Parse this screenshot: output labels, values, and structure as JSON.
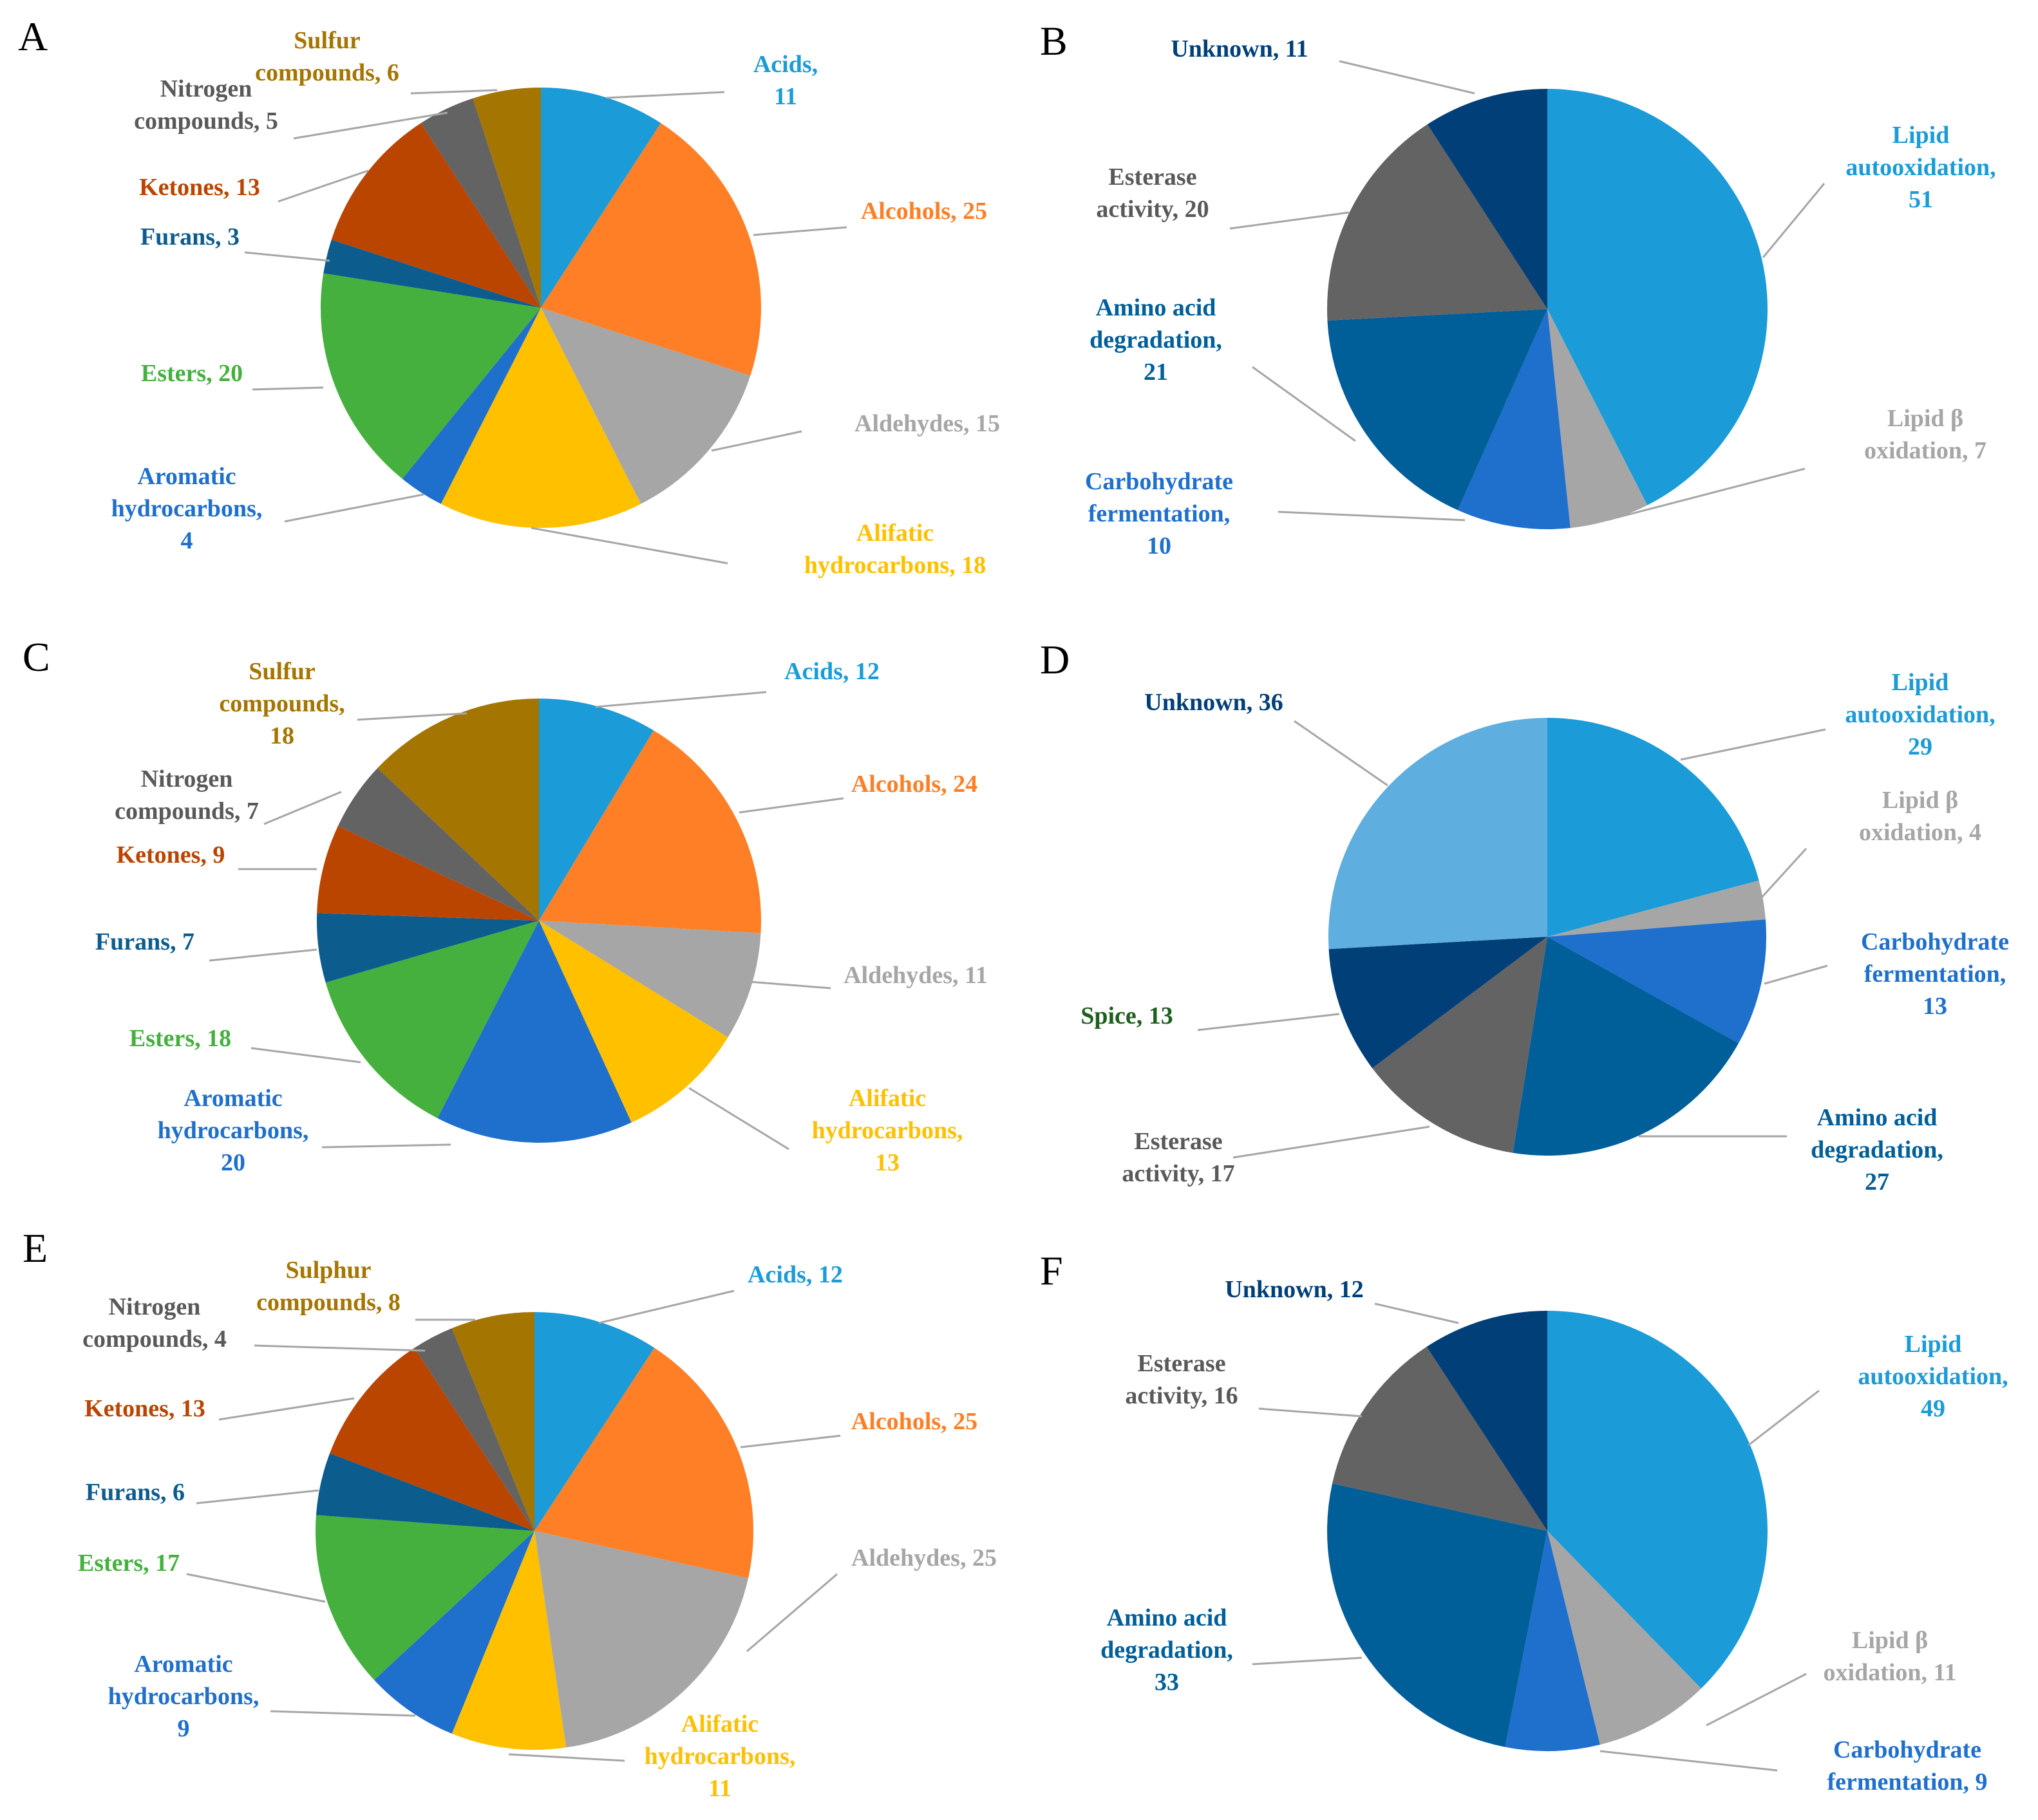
{
  "chart_data": [
    {
      "panel": "A",
      "type": "pie",
      "slices": [
        {
          "label": [
            "Acids,",
            "11"
          ],
          "value": 11,
          "color": "#1b9bd7"
        },
        {
          "label": [
            "Alcohols, 25"
          ],
          "value": 25,
          "color": "#ff7f27"
        },
        {
          "label": [
            "Aldehydes, 15"
          ],
          "value": 15,
          "color": "#a6a6a6"
        },
        {
          "label": [
            "Alifatic",
            "hydrocarbons, 18"
          ],
          "value": 18,
          "color": "#ffc000"
        },
        {
          "label": [
            "Aromatic",
            "hydrocarbons,",
            "4"
          ],
          "value": 4,
          "color": "#1f6fcc"
        },
        {
          "label": [
            "Esters, 20"
          ],
          "value": 20,
          "color": "#46b03e"
        },
        {
          "label": [
            "Furans, 3"
          ],
          "value": 3,
          "color": "#0d5c8e"
        },
        {
          "label": [
            "Ketones, 13"
          ],
          "value": 13,
          "color": "#b94500"
        },
        {
          "label": [
            "Nitrogen",
            "compounds, 5"
          ],
          "value": 5,
          "color": "#636363",
          "text_color": "#595959"
        },
        {
          "label": [
            "Sulfur",
            "compounds, 6"
          ],
          "value": 6,
          "color": "#a47500"
        }
      ]
    },
    {
      "panel": "B",
      "type": "pie",
      "slices": [
        {
          "label": [
            "Lipid",
            "autooxidation,",
            "51"
          ],
          "value": 51,
          "color": "#1b9bd7"
        },
        {
          "label": [
            "Lipid β",
            "oxidation, 7"
          ],
          "value": 7,
          "color": "#a6a6a6"
        },
        {
          "label": [
            "Carbohydrate",
            "fermentation,",
            "10"
          ],
          "value": 10,
          "color": "#1f6fcc"
        },
        {
          "label": [
            "Amino acid",
            "degradation,",
            "21"
          ],
          "value": 21,
          "color": "#005e99"
        },
        {
          "label": [
            "Esterase",
            "activity, 20"
          ],
          "value": 20,
          "color": "#636363",
          "text_color": "#595959"
        },
        {
          "label": [
            "Unknown, 11"
          ],
          "value": 11,
          "color": "#003f78"
        }
      ]
    },
    {
      "panel": "C",
      "type": "pie",
      "slices": [
        {
          "label": [
            "Acids, 12"
          ],
          "value": 12,
          "color": "#1b9bd7"
        },
        {
          "label": [
            "Alcohols, 24"
          ],
          "value": 24,
          "color": "#ff7f27"
        },
        {
          "label": [
            "Aldehydes, 11"
          ],
          "value": 11,
          "color": "#a6a6a6"
        },
        {
          "label": [
            "Alifatic",
            "hydrocarbons,",
            "13"
          ],
          "value": 13,
          "color": "#ffc000"
        },
        {
          "label": [
            "Aromatic",
            "hydrocarbons,",
            "20"
          ],
          "value": 20,
          "color": "#1f6fcc"
        },
        {
          "label": [
            "Esters, 18"
          ],
          "value": 18,
          "color": "#46b03e"
        },
        {
          "label": [
            "Furans, 7"
          ],
          "value": 7,
          "color": "#0d5c8e"
        },
        {
          "label": [
            "Ketones, 9"
          ],
          "value": 9,
          "color": "#b94500"
        },
        {
          "label": [
            "Nitrogen",
            "compounds, 7"
          ],
          "value": 7,
          "color": "#636363",
          "text_color": "#595959"
        },
        {
          "label": [
            "Sulfur",
            "compounds,",
            "18"
          ],
          "value": 18,
          "color": "#a47500"
        }
      ]
    },
    {
      "panel": "D",
      "type": "pie",
      "slices": [
        {
          "label": [
            "Lipid",
            "autooxidation,",
            "29"
          ],
          "value": 29,
          "color": "#1b9bd7"
        },
        {
          "label": [
            "Lipid β",
            "oxidation, 4"
          ],
          "value": 4,
          "color": "#a6a6a6"
        },
        {
          "label": [
            "Carbohydrate",
            "fermentation,",
            "13"
          ],
          "value": 13,
          "color": "#1f6fcc"
        },
        {
          "label": [
            "Amino acid",
            "degradation,",
            "27"
          ],
          "value": 27,
          "color": "#005e99"
        },
        {
          "label": [
            "Esterase",
            "activity, 17"
          ],
          "value": 17,
          "color": "#636363",
          "text_color": "#595959"
        },
        {
          "label": [
            "Spice, 13"
          ],
          "value": 13,
          "color": "#003f78",
          "text_color": "#1f5e1f"
        },
        {
          "label": [
            "Unknown, 36"
          ],
          "value": 36,
          "color": "#5eaee0",
          "text_color": "#003f78"
        }
      ]
    },
    {
      "panel": "E",
      "type": "pie",
      "slices": [
        {
          "label": [
            "Acids, 12"
          ],
          "value": 12,
          "color": "#1b9bd7"
        },
        {
          "label": [
            "Alcohols, 25"
          ],
          "value": 25,
          "color": "#ff7f27"
        },
        {
          "label": [
            "Aldehydes, 25"
          ],
          "value": 25,
          "color": "#a6a6a6"
        },
        {
          "label": [
            "Alifatic",
            "hydrocarbons,",
            "11"
          ],
          "value": 11,
          "color": "#ffc000"
        },
        {
          "label": [
            "Aromatic",
            "hydrocarbons,",
            "9"
          ],
          "value": 9,
          "color": "#1f6fcc"
        },
        {
          "label": [
            "Esters, 17"
          ],
          "value": 17,
          "color": "#46b03e"
        },
        {
          "label": [
            "Furans, 6"
          ],
          "value": 6,
          "color": "#0d5c8e"
        },
        {
          "label": [
            "Ketones, 13"
          ],
          "value": 13,
          "color": "#b94500"
        },
        {
          "label": [
            "Nitrogen",
            "compounds, 4"
          ],
          "value": 4,
          "color": "#636363",
          "text_color": "#595959"
        },
        {
          "label": [
            "Sulphur",
            "compounds, 8"
          ],
          "value": 8,
          "color": "#a47500"
        }
      ]
    },
    {
      "panel": "F",
      "type": "pie",
      "slices": [
        {
          "label": [
            "Lipid",
            "autooxidation,",
            "49"
          ],
          "value": 49,
          "color": "#1b9bd7"
        },
        {
          "label": [
            "Lipid β",
            "oxidation, 11"
          ],
          "value": 11,
          "color": "#a6a6a6"
        },
        {
          "label": [
            "Carbohydrate",
            "fermentation, 9"
          ],
          "value": 9,
          "color": "#1f6fcc"
        },
        {
          "label": [
            "Amino acid",
            "degradation,",
            "33"
          ],
          "value": 33,
          "color": "#005e99"
        },
        {
          "label": [
            "Esterase",
            "activity, 16"
          ],
          "value": 16,
          "color": "#636363",
          "text_color": "#595959"
        },
        {
          "label": [
            "Unknown, 12"
          ],
          "value": 12,
          "color": "#003f78"
        }
      ]
    }
  ]
}
